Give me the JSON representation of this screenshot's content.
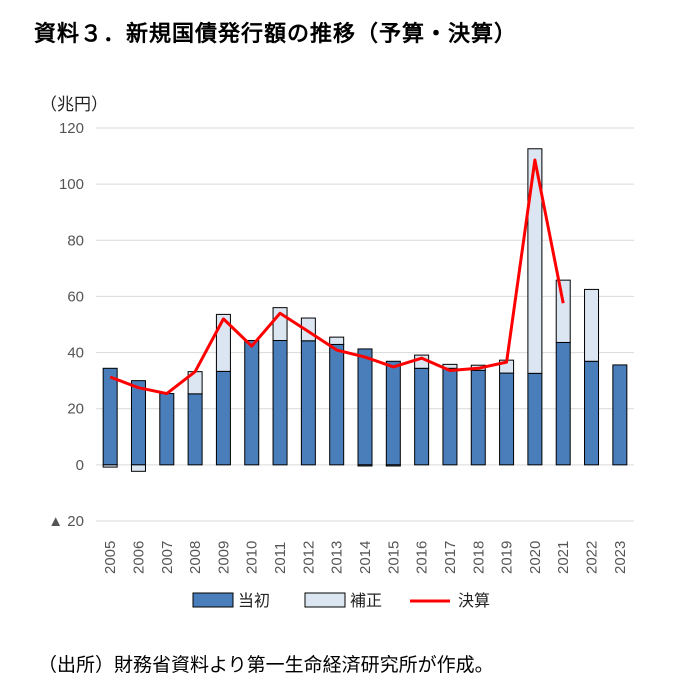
{
  "page": {
    "title": "資料３．新規国債発行額の推移（予算・決算）",
    "source": "（出所）財務省資料より第一生命経済研究所が作成。"
  },
  "chart_data": {
    "type": "bar",
    "unit_label": "（兆円）",
    "categories": [
      "2005",
      "2006",
      "2007",
      "2008",
      "2009",
      "2010",
      "2011",
      "2012",
      "2013",
      "2014",
      "2015",
      "2016",
      "2017",
      "2018",
      "2019",
      "2020",
      "2021",
      "2022",
      "2023"
    ],
    "series": [
      {
        "name": "当初",
        "kind": "bar",
        "color": "#4a7ebb",
        "values": [
          34.4,
          30.0,
          25.4,
          25.3,
          33.3,
          44.3,
          44.3,
          44.2,
          42.9,
          41.3,
          36.9,
          34.4,
          34.4,
          33.7,
          32.7,
          32.6,
          43.6,
          36.9,
          35.6
        ]
      },
      {
        "name": "補正",
        "kind": "bar",
        "color": "#dce6f2",
        "values": [
          -0.8,
          -2.3,
          0,
          7.9,
          20.3,
          0,
          11.7,
          8.1,
          2.6,
          -0.4,
          -0.4,
          4.7,
          1.4,
          1.8,
          4.6,
          80.0,
          22.2,
          25.6,
          0
        ]
      },
      {
        "name": "決算",
        "kind": "line",
        "color": "#ff0000",
        "values": [
          31.3,
          27.5,
          25.4,
          33.2,
          52.0,
          42.3,
          54.0,
          47.5,
          40.9,
          38.4,
          34.9,
          38.0,
          33.6,
          34.4,
          36.6,
          108.6,
          57.6,
          null,
          null
        ]
      }
    ],
    "ylim": [
      -20,
      120
    ],
    "yticks": [
      -20,
      0,
      20,
      40,
      60,
      80,
      100,
      120
    ],
    "ytick_labels": [
      "▲ 20",
      "0",
      "20",
      "40",
      "60",
      "80",
      "100",
      "120"
    ],
    "grid": true,
    "legend_position": "bottom"
  }
}
